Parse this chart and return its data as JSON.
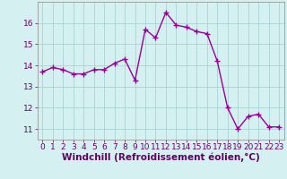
{
  "x": [
    0,
    1,
    2,
    3,
    4,
    5,
    6,
    7,
    8,
    9,
    10,
    11,
    12,
    13,
    14,
    15,
    16,
    17,
    18,
    19,
    20,
    21,
    22,
    23
  ],
  "y": [
    13.7,
    13.9,
    13.8,
    13.6,
    13.6,
    13.8,
    13.8,
    14.1,
    14.3,
    13.3,
    15.7,
    15.3,
    16.5,
    15.9,
    15.8,
    15.6,
    15.5,
    14.2,
    12.0,
    11.0,
    11.6,
    11.7,
    11.1,
    11.1
  ],
  "line_color": "#990099",
  "marker": "+",
  "marker_size": 4,
  "background_color": "#d4f0f0",
  "grid_color": "#aad4d4",
  "xlabel": "Windchill (Refroidissement éolien,°C)",
  "xlabel_fontsize": 7.5,
  "ylim": [
    10.5,
    17.0
  ],
  "xlim": [
    -0.5,
    23.5
  ],
  "yticks": [
    11,
    12,
    13,
    14,
    15,
    16
  ],
  "xticks": [
    0,
    1,
    2,
    3,
    4,
    5,
    6,
    7,
    8,
    9,
    10,
    11,
    12,
    13,
    14,
    15,
    16,
    17,
    18,
    19,
    20,
    21,
    22,
    23
  ],
  "tick_fontsize": 6.5,
  "line_width": 1.0,
  "marker_edge_width": 1.0
}
